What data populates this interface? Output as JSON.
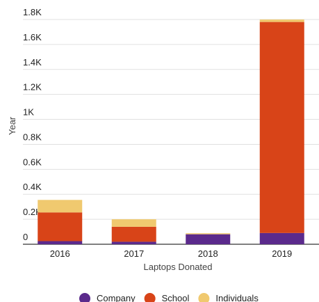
{
  "chart_data": {
    "type": "bar",
    "stacked": true,
    "categories": [
      "2016",
      "2017",
      "2018",
      "2019"
    ],
    "series": [
      {
        "name": "Company",
        "values": [
          25,
          20,
          80,
          90
        ],
        "color": "#5b2a8c"
      },
      {
        "name": "School",
        "values": [
          230,
          120,
          0,
          1690
        ],
        "color": "#d84418"
      },
      {
        "name": "Individuals",
        "values": [
          100,
          60,
          8,
          20
        ],
        "color": "#f0c96f"
      }
    ],
    "xlabel": "Laptops Donated",
    "ylabel": "Year",
    "ylim": [
      0,
      1800
    ],
    "yticks": [
      0,
      200,
      400,
      600,
      800,
      1000,
      1200,
      1400,
      1600,
      1800
    ],
    "ytick_labels": [
      "0",
      "0.2K",
      "0.4K",
      "0.6K",
      "0.8K",
      "1K",
      "1.2K",
      "1.4K",
      "1.6K",
      "1.8K"
    ],
    "grid": true,
    "legend_position": "bottom"
  }
}
